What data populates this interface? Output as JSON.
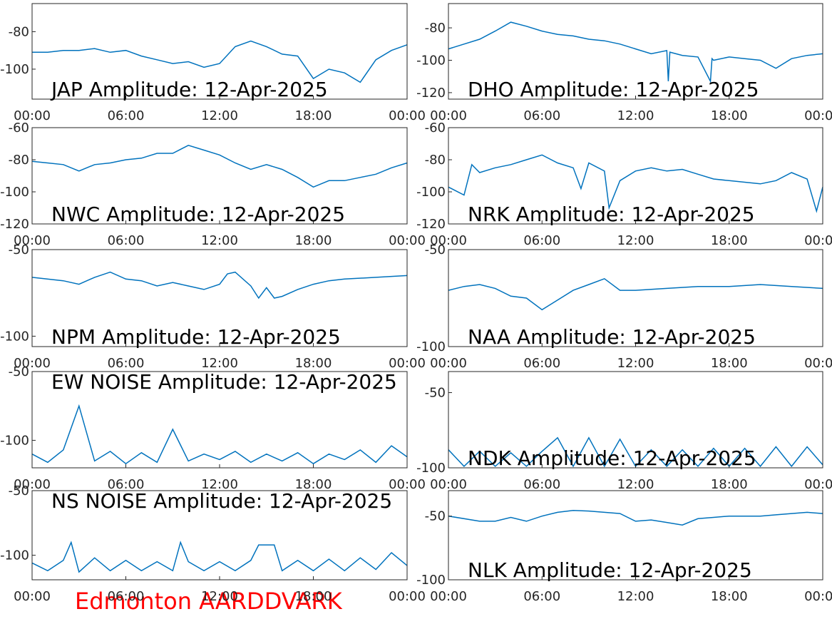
{
  "chart_data": [
    {
      "type": "line",
      "title": "JAP Amplitude: 12-Apr-2025",
      "color": "#0072bd",
      "x": [
        0,
        1,
        2,
        3,
        4,
        5,
        6,
        7,
        8,
        9,
        10,
        11,
        12,
        13,
        14,
        15,
        16,
        17,
        18,
        19,
        20,
        21,
        22,
        23,
        24
      ],
      "values": [
        -91,
        -91,
        -90,
        -90,
        -89,
        -91,
        -90,
        -93,
        -95,
        -97,
        -96,
        -99,
        -97,
        -88,
        -85,
        -88,
        -92,
        -93,
        -105,
        -100,
        -102,
        -107,
        -95,
        -90,
        -87
      ],
      "xlim": [
        0,
        24
      ],
      "xticks": [
        {
          "value": 0,
          "label": "00:00"
        },
        {
          "value": 6,
          "label": "06:00"
        },
        {
          "value": 12,
          "label": "12:00"
        },
        {
          "value": 18,
          "label": "18:00"
        },
        {
          "value": 24,
          "label": "00:00"
        }
      ],
      "ylim": [
        -116,
        -65
      ],
      "yticks": [
        -80,
        -100
      ]
    },
    {
      "type": "line",
      "title": "DHO Amplitude: 12-Apr-2025",
      "color": "#0072bd",
      "x": [
        0,
        1,
        2,
        3,
        4,
        5,
        6,
        7,
        8,
        9,
        10,
        11,
        12,
        13,
        14,
        14.1,
        14.2,
        15,
        16,
        16.8,
        16.9,
        17,
        18,
        19,
        20,
        21,
        22,
        23,
        24
      ],
      "values": [
        -93,
        -90,
        -87,
        -82,
        -76.5,
        -79,
        -82,
        -84,
        -85,
        -87,
        -88,
        -90,
        -93,
        -96,
        -94,
        -113,
        -95,
        -97,
        -98,
        -113,
        -99,
        -100,
        -98,
        -99,
        -100,
        -105,
        -99,
        -97,
        -96
      ],
      "xlim": [
        0,
        24
      ],
      "xticks": [
        {
          "value": 0,
          "label": "00:00"
        },
        {
          "value": 6,
          "label": "06:00"
        },
        {
          "value": 12,
          "label": "12:00"
        },
        {
          "value": 18,
          "label": "18:00"
        },
        {
          "value": 24,
          "label": "00:00"
        }
      ],
      "ylim": [
        -124,
        -65
      ],
      "yticks": [
        -80,
        -100,
        -120
      ]
    },
    {
      "type": "line",
      "title": "NWC Amplitude: 12-Apr-2025",
      "color": "#0072bd",
      "x": [
        0,
        1,
        2,
        3,
        4,
        5,
        6,
        7,
        8,
        9,
        10,
        11,
        12,
        13,
        14,
        15,
        16,
        17,
        18,
        19,
        20,
        21,
        22,
        23,
        24
      ],
      "values": [
        -81,
        -82,
        -83,
        -87,
        -83,
        -82,
        -80,
        -79,
        -76,
        -76,
        -71,
        -74,
        -77,
        -82,
        -86,
        -83,
        -86,
        -91,
        -97,
        -93,
        -93,
        -91,
        -89,
        -85,
        -82
      ],
      "xlim": [
        0,
        24
      ],
      "xticks": [
        {
          "value": 0,
          "label": "00:00"
        },
        {
          "value": 6,
          "label": "06:00"
        },
        {
          "value": 12,
          "label": "12:00"
        },
        {
          "value": 18,
          "label": "18:00"
        },
        {
          "value": 24,
          "label": "00:00"
        }
      ],
      "ylim": [
        -120,
        -60
      ],
      "yticks": [
        -60,
        -80,
        -100,
        -120
      ]
    },
    {
      "type": "line",
      "title": "NRK Amplitude: 12-Apr-2025",
      "color": "#0072bd",
      "x": [
        0,
        1,
        1.5,
        2,
        3,
        4,
        5,
        6,
        7,
        8,
        8.5,
        9,
        10,
        10.3,
        11,
        12,
        13,
        14,
        15,
        16,
        17,
        18,
        19,
        20,
        21,
        22,
        23,
        23.6,
        24
      ],
      "values": [
        -97,
        -102,
        -83,
        -88,
        -85,
        -83,
        -80,
        -77,
        -82,
        -85,
        -98,
        -82,
        -87,
        -110,
        -93,
        -87,
        -85,
        -87,
        -86,
        -89,
        -92,
        -93,
        -94,
        -95,
        -93,
        -88,
        -92,
        -112,
        -97
      ],
      "xlim": [
        0,
        24
      ],
      "xticks": [
        {
          "value": 0,
          "label": "00:00"
        },
        {
          "value": 6,
          "label": "06:00"
        },
        {
          "value": 12,
          "label": "12:00"
        },
        {
          "value": 18,
          "label": "18:00"
        },
        {
          "value": 24,
          "label": "00:00"
        }
      ],
      "ylim": [
        -120,
        -60
      ],
      "yticks": [
        -60,
        -80,
        -100,
        -120
      ]
    },
    {
      "type": "line",
      "title": "NPM Amplitude: 12-Apr-2025",
      "color": "#0072bd",
      "x": [
        0,
        2,
        3,
        4,
        5,
        6,
        7,
        8,
        9,
        10,
        11,
        12,
        12.5,
        13,
        14,
        14.5,
        15,
        15.5,
        16,
        17,
        18,
        19,
        20,
        22,
        24
      ],
      "values": [
        -66,
        -68,
        -70,
        -66,
        -63,
        -67,
        -68,
        -71,
        -69,
        -71,
        -73,
        -70,
        -64,
        -63,
        -71,
        -78,
        -72,
        -78,
        -77,
        -73,
        -70,
        -68,
        -67,
        -66,
        -65
      ],
      "xlim": [
        0,
        24
      ],
      "xticks": [
        {
          "value": 0,
          "label": "00:00"
        },
        {
          "value": 6,
          "label": "06:00"
        },
        {
          "value": 12,
          "label": "12:00"
        },
        {
          "value": 18,
          "label": "18:00"
        },
        {
          "value": 24,
          "label": "00:00"
        }
      ],
      "ylim": [
        -106,
        -50
      ],
      "yticks": [
        -50,
        -100
      ]
    },
    {
      "type": "line",
      "title": "NAA Amplitude: 12-Apr-2025",
      "color": "#0072bd",
      "x": [
        0,
        1,
        2,
        3,
        4,
        5,
        6,
        7,
        8,
        9,
        10,
        11,
        12,
        14,
        16,
        18,
        20,
        22,
        24
      ],
      "values": [
        -71,
        -69,
        -68,
        -70,
        -74,
        -75,
        -81,
        -76,
        -71,
        -68,
        -65,
        -71,
        -71,
        -70,
        -69,
        -69,
        -68,
        -69,
        -70
      ],
      "xlim": [
        0,
        24
      ],
      "xticks": [
        {
          "value": 0,
          "label": "00:00"
        },
        {
          "value": 6,
          "label": "06:00"
        },
        {
          "value": 12,
          "label": "12:00"
        },
        {
          "value": 18,
          "label": "18:00"
        },
        {
          "value": 24,
          "label": "00:00"
        }
      ],
      "ylim": [
        -100,
        -50
      ],
      "yticks": [
        -50,
        -100
      ]
    },
    {
      "type": "line",
      "title": "EW NOISE Amplitude: 12-Apr-2025",
      "color": "#0072bd",
      "x": [
        0,
        1,
        2,
        3,
        4,
        5,
        6,
        7,
        8,
        9,
        10,
        11,
        12,
        13,
        14,
        15,
        16,
        17,
        18,
        19,
        20,
        21,
        22,
        23,
        24
      ],
      "values": [
        -110,
        -116,
        -107,
        -75,
        -115,
        -108,
        -117,
        -109,
        -116,
        -92,
        -115,
        -110,
        -114,
        -108,
        -116,
        -110,
        -115,
        -109,
        -117,
        -110,
        -114,
        -107,
        -116,
        -104,
        -112
      ],
      "xlim": [
        0,
        24
      ],
      "xticks": [
        {
          "value": 0,
          "label": "00:00"
        },
        {
          "value": 6,
          "label": "06:00"
        },
        {
          "value": 12,
          "label": "12:00"
        },
        {
          "value": 18,
          "label": "18:00"
        },
        {
          "value": 24,
          "label": "00:00"
        }
      ],
      "ylim": [
        -120,
        -50
      ],
      "yticks": [
        -50,
        -100
      ]
    },
    {
      "type": "line",
      "title": "NDK Amplitude: 12-Apr-2025",
      "color": "#0072bd",
      "x": [
        0,
        1,
        2,
        3,
        4,
        5,
        6,
        7,
        8,
        9,
        10,
        11,
        12,
        13,
        14,
        15,
        16,
        17,
        18,
        19,
        20,
        21,
        22,
        23,
        24
      ],
      "values": [
        -88,
        -99,
        -89,
        -99,
        -90,
        -99,
        -89,
        -80,
        -99,
        -80,
        -99,
        -81,
        -99,
        -88,
        -99,
        -88,
        -99,
        -87,
        -99,
        -87,
        -99,
        -86,
        -99,
        -86,
        -98
      ],
      "xlim": [
        0,
        24
      ],
      "xticks": [
        {
          "value": 0,
          "label": "00:00"
        },
        {
          "value": 6,
          "label": "06:00"
        },
        {
          "value": 12,
          "label": "12:00"
        },
        {
          "value": 18,
          "label": "18:00"
        },
        {
          "value": 24,
          "label": "00:00"
        }
      ],
      "ylim": [
        -100,
        -36
      ],
      "yticks": [
        -50,
        -100
      ]
    },
    {
      "type": "line",
      "title": "NS NOISE Amplitude: 12-Apr-2025",
      "color": "#0072bd",
      "x": [
        0,
        1,
        2,
        2.5,
        3,
        4,
        5,
        6,
        7,
        8,
        9,
        9.5,
        10,
        11,
        12,
        13,
        14,
        14.5,
        15.5,
        16,
        17,
        18,
        19,
        20,
        21,
        22,
        23,
        24
      ],
      "values": [
        -106,
        -112,
        -104,
        -90,
        -113,
        -102,
        -112,
        -104,
        -112,
        -105,
        -112,
        -90,
        -105,
        -112,
        -105,
        -112,
        -104,
        -92,
        -92,
        -112,
        -104,
        -112,
        -103,
        -112,
        -102,
        -111,
        -98,
        -108
      ],
      "xlim": [
        0,
        24
      ],
      "xticks": [
        {
          "value": 0,
          "label": "00:00"
        },
        {
          "value": 6,
          "label": "06:00"
        },
        {
          "value": 12,
          "label": "12:00"
        },
        {
          "value": 18,
          "label": "18:00"
        },
        {
          "value": 24,
          "label": "00:00"
        }
      ],
      "ylim": [
        -119,
        -50
      ],
      "yticks": [
        -50,
        -100
      ]
    },
    {
      "type": "line",
      "title": "NLK Amplitude: 12-Apr-2025",
      "color": "#0072bd",
      "x": [
        0,
        2,
        3,
        4,
        5,
        6,
        7,
        8,
        9,
        10,
        11,
        12,
        13,
        14,
        15,
        16,
        17,
        18,
        19,
        20,
        21,
        22,
        23,
        24
      ],
      "values": [
        -50,
        -54,
        -54,
        -51,
        -54,
        -50,
        -47,
        -45.5,
        -46,
        -47,
        -48,
        -54,
        -53,
        -55,
        -57,
        -52,
        -51,
        -50,
        -50,
        -50,
        -49,
        -48,
        -47,
        -48
      ],
      "xlim": [
        0,
        24
      ],
      "xticks": [
        {
          "value": 0,
          "label": "00:00"
        },
        {
          "value": 6,
          "label": "06:00"
        },
        {
          "value": 12,
          "label": "12:00"
        },
        {
          "value": 18,
          "label": "18:00"
        },
        {
          "value": 24,
          "label": "00:00"
        }
      ],
      "ylim": [
        -100,
        -30
      ],
      "yticks": [
        -50,
        -100
      ]
    }
  ],
  "footer": "Edmonton AARDDVARK"
}
